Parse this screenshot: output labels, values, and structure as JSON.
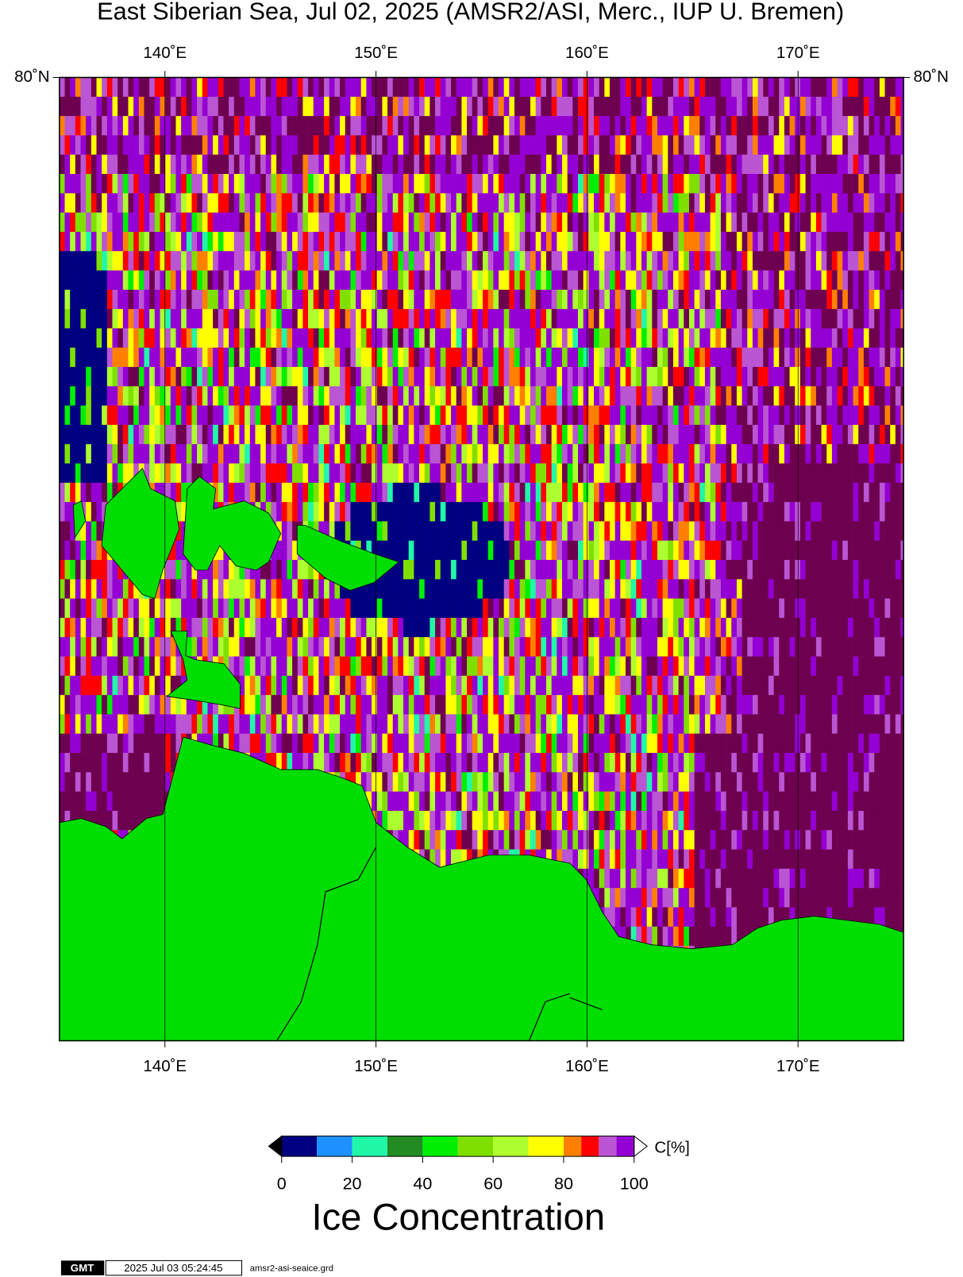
{
  "chart_data": {
    "type": "map",
    "title": "East Siberian Sea, Jul 02, 2025 (AMSR2/ASI, Merc., IUP U. Bremen)",
    "xlim": [
      135,
      175
    ],
    "xticks": [
      {
        "value": 140,
        "label": "140˚E"
      },
      {
        "value": 150,
        "label": "150˚E"
      },
      {
        "value": 160,
        "label": "160˚E"
      },
      {
        "value": 170,
        "label": "170˚E"
      }
    ],
    "ylim": [
      68,
      80
    ],
    "yticks": [
      {
        "value": 80,
        "label": "80˚N"
      }
    ],
    "colorbar": {
      "bounds": [
        0,
        10,
        20,
        30,
        40,
        50,
        60,
        70,
        80,
        85,
        90,
        95,
        100
      ],
      "colors": [
        "#000080",
        "#1e90ff",
        "#20f8a8",
        "#228b22",
        "#00ee00",
        "#7fe000",
        "#adff2f",
        "#ffff00",
        "#ff8000",
        "#ff0000",
        "#ba55d3",
        "#9400d3"
      ],
      "ticks": [
        0,
        20,
        40,
        60,
        80,
        100
      ],
      "unit": "C[%]",
      "title": "Ice Concentration"
    },
    "footer": {
      "logo": "GMT",
      "timestamp": "2025 Jul 03 05:24:45",
      "file": "amsr2-asi-seaice.grd"
    }
  }
}
